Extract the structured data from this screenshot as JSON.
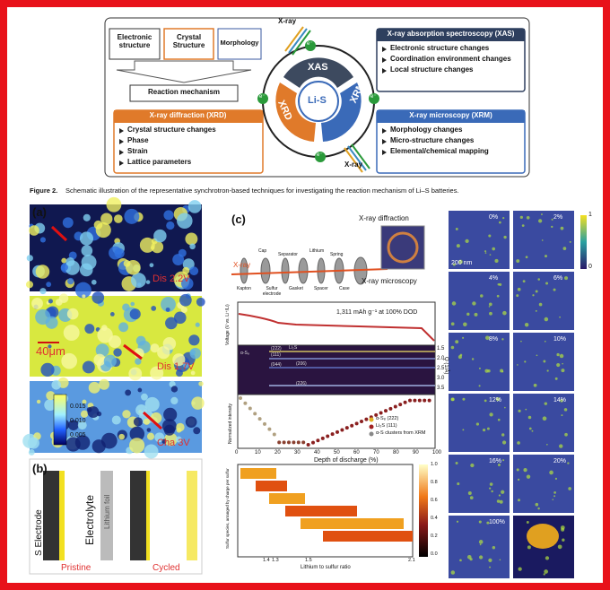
{
  "schematic": {
    "aspects": [
      "Electronic structure",
      "Crystal Structure",
      "Morphology"
    ],
    "mechanism": "Reaction mechanism",
    "xray_labels": [
      "X-ray",
      "X-ray"
    ],
    "wheel": {
      "center": "Li-S",
      "segments": [
        "XAS",
        "XRD",
        "XRM"
      ],
      "electron": "e⁻"
    },
    "xas": {
      "title": "X-ray absorption spectroscopy (XAS)",
      "items": [
        "Electronic structure changes",
        "Coordination environment changes",
        "Local structure changes"
      ]
    },
    "xrd": {
      "title": "X-ray diffraction (XRD)",
      "items": [
        "Crystal structure changes",
        "Phase",
        "Strain",
        "Lattice parameters"
      ]
    },
    "xrm": {
      "title": "X-ray microscopy (XRM)",
      "items": [
        "Morphology changes",
        "Micro-structure changes",
        "Elemental/chemical mapping"
      ]
    }
  },
  "caption": {
    "label": "Figure 2.",
    "text": "Schematic illustration of the representative synchrotron-based techniques for investigating the reaction mechanism of Li–S batteries."
  },
  "panel_a": {
    "label": "(a)",
    "states": [
      "Dis 2.2V",
      "Dis 1.7V",
      "Cha 3V"
    ],
    "scale_bar": "40μm",
    "colorbar_ticks": [
      "0.015",
      "0.010",
      "0.005"
    ]
  },
  "panel_b": {
    "label": "(b)",
    "layers": [
      "S Electrode",
      "Electrolyte",
      "Lithium foil"
    ],
    "conditions": [
      "Pristine",
      "Cycled"
    ]
  },
  "panel_c": {
    "label": "(c)",
    "techniques": [
      "X-ray diffraction",
      "X-ray microscopy"
    ],
    "beam": "X-ray",
    "cell_parts_top": [
      "Cap",
      "Separator",
      "Lithium",
      "Spring"
    ],
    "cell_parts_bottom": [
      "Kapton",
      "Sulfur electrode",
      "Gasket",
      "Spacer",
      "Case"
    ],
    "capacity": "1,311 mAh g⁻¹ at 100% DOD",
    "voltage_label": "Voltage (V vs. Li⁺/Li)",
    "q_label": "Q (1/Å)",
    "q_ticks": [
      "1.5",
      "2.0",
      "2.5",
      "3.0",
      "3.5"
    ],
    "reflections": [
      "(222)",
      "(111)",
      "(044)",
      "(206)",
      "(226)"
    ],
    "phases": [
      "Li₂S",
      "α-S₈"
    ],
    "intensity_label": "Normalized intensity",
    "dod_label": "Depth of discharge (%)",
    "dod_ticks": [
      "0",
      "10",
      "20",
      "30",
      "40",
      "50",
      "60",
      "70",
      "80",
      "90",
      "100"
    ],
    "legend": [
      "α-S₈ (222)",
      "Li₂S (111)",
      "α-S clusters from XRM"
    ],
    "species_label": "Sulfur species, arranged by charge per sulfur",
    "ratio_label": "Lithium to sulfur ratio",
    "ratio_ticks": [
      "1.4",
      "1.3",
      "1.5",
      "2.1"
    ],
    "colorbar_ticks": [
      "1.0",
      "0.8",
      "0.6",
      "0.4",
      "0.2",
      "0.0"
    ]
  },
  "xrm_series": {
    "frames": [
      "0%",
      "2%",
      "4%",
      "6%",
      "8%",
      "10%",
      "12%",
      "14%",
      "16%",
      "20%",
      "100%"
    ],
    "scale_bar": "200 nm",
    "colorbar_ticks": [
      "1",
      "0"
    ]
  }
}
